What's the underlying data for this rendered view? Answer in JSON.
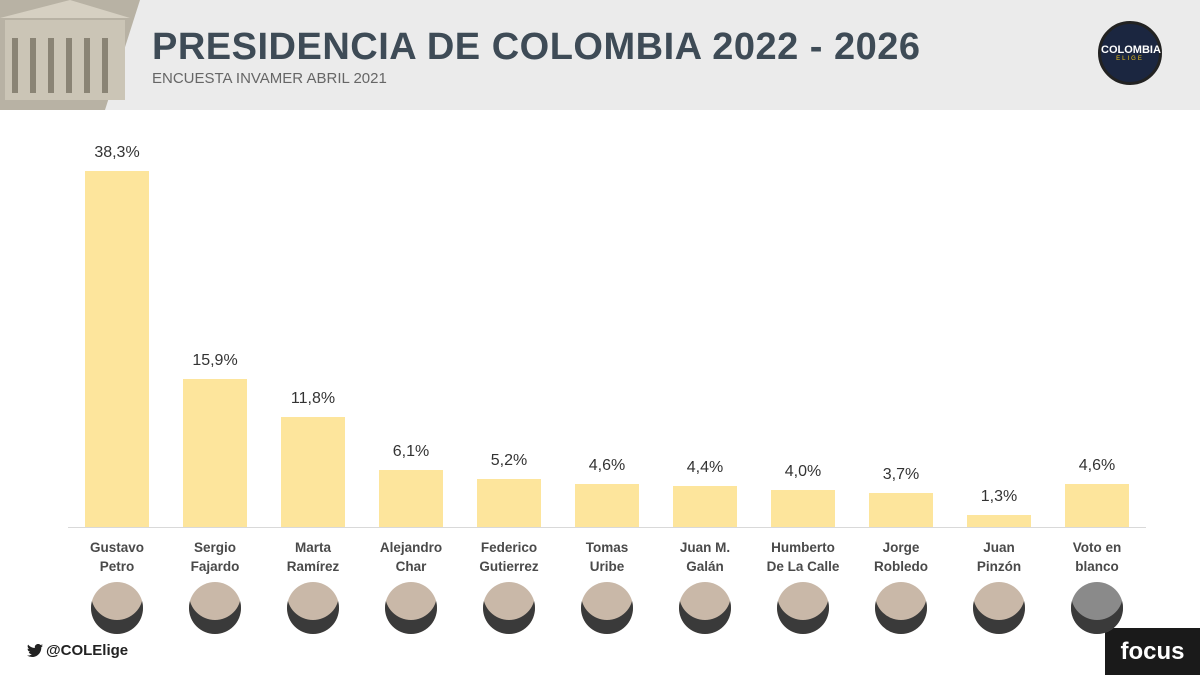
{
  "chart_data": {
    "type": "bar",
    "title": "PRESIDENCIA DE COLOMBIA 2022 - 2026",
    "subtitle": "ENCUESTA INVAMER ABRIL 2021",
    "categories": [
      "Gustavo\nPetro",
      "Sergio\nFajardo",
      "Marta\nRamírez",
      "Alejandro\nChar",
      "Federico\nGutierrez",
      "Tomas\nUribe",
      "Juan M.\nGalán",
      "Humberto\nDe La Calle",
      "Jorge\nRobledo",
      "Juan\nPinzón",
      "Voto en\nblanco"
    ],
    "values": [
      38.3,
      15.9,
      11.8,
      6.1,
      5.2,
      4.6,
      4.4,
      4.0,
      3.7,
      1.3,
      4.6
    ],
    "value_labels": [
      "38,3%",
      "15,9%",
      "11,8%",
      "6,1%",
      "5,2%",
      "4,6%",
      "4,4%",
      "4,0%",
      "3,7%",
      "1,3%",
      "4,6%"
    ],
    "color": "#fde59c",
    "logo": [
      "COLOMBIA",
      "ELIGE"
    ],
    "handle": "@COLElige",
    "brand": "focus"
  }
}
